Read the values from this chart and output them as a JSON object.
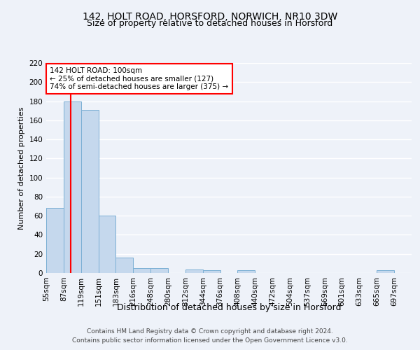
{
  "title1": "142, HOLT ROAD, HORSFORD, NORWICH, NR10 3DW",
  "title2": "Size of property relative to detached houses in Horsford",
  "xlabel": "Distribution of detached houses by size in Horsford",
  "ylabel": "Number of detached properties",
  "footer1": "Contains HM Land Registry data © Crown copyright and database right 2024.",
  "footer2": "Contains public sector information licensed under the Open Government Licence v3.0.",
  "bin_labels": [
    "55sqm",
    "87sqm",
    "119sqm",
    "151sqm",
    "183sqm",
    "216sqm",
    "248sqm",
    "280sqm",
    "312sqm",
    "344sqm",
    "376sqm",
    "408sqm",
    "440sqm",
    "472sqm",
    "504sqm",
    "537sqm",
    "569sqm",
    "601sqm",
    "633sqm",
    "665sqm",
    "697sqm"
  ],
  "bar_values": [
    68,
    180,
    171,
    60,
    16,
    5,
    5,
    0,
    4,
    3,
    0,
    3,
    0,
    0,
    0,
    0,
    0,
    0,
    0,
    3,
    0
  ],
  "bar_color": "#c5d8ed",
  "bar_edge_color": "#7bafd4",
  "subject_line_color": "red",
  "annotation_text": "142 HOLT ROAD: 100sqm\n← 25% of detached houses are smaller (127)\n74% of semi-detached houses are larger (375) →",
  "annotation_box_color": "white",
  "annotation_box_edge": "red",
  "ylim": [
    0,
    220
  ],
  "yticks": [
    0,
    20,
    40,
    60,
    80,
    100,
    120,
    140,
    160,
    180,
    200,
    220
  ],
  "bg_color": "#eef2f9",
  "grid_color": "#ffffff",
  "title1_fontsize": 10,
  "title2_fontsize": 9,
  "xlabel_fontsize": 9,
  "ylabel_fontsize": 8,
  "tick_fontsize": 7.5,
  "footer_fontsize": 6.5,
  "annotation_fontsize": 7.5
}
